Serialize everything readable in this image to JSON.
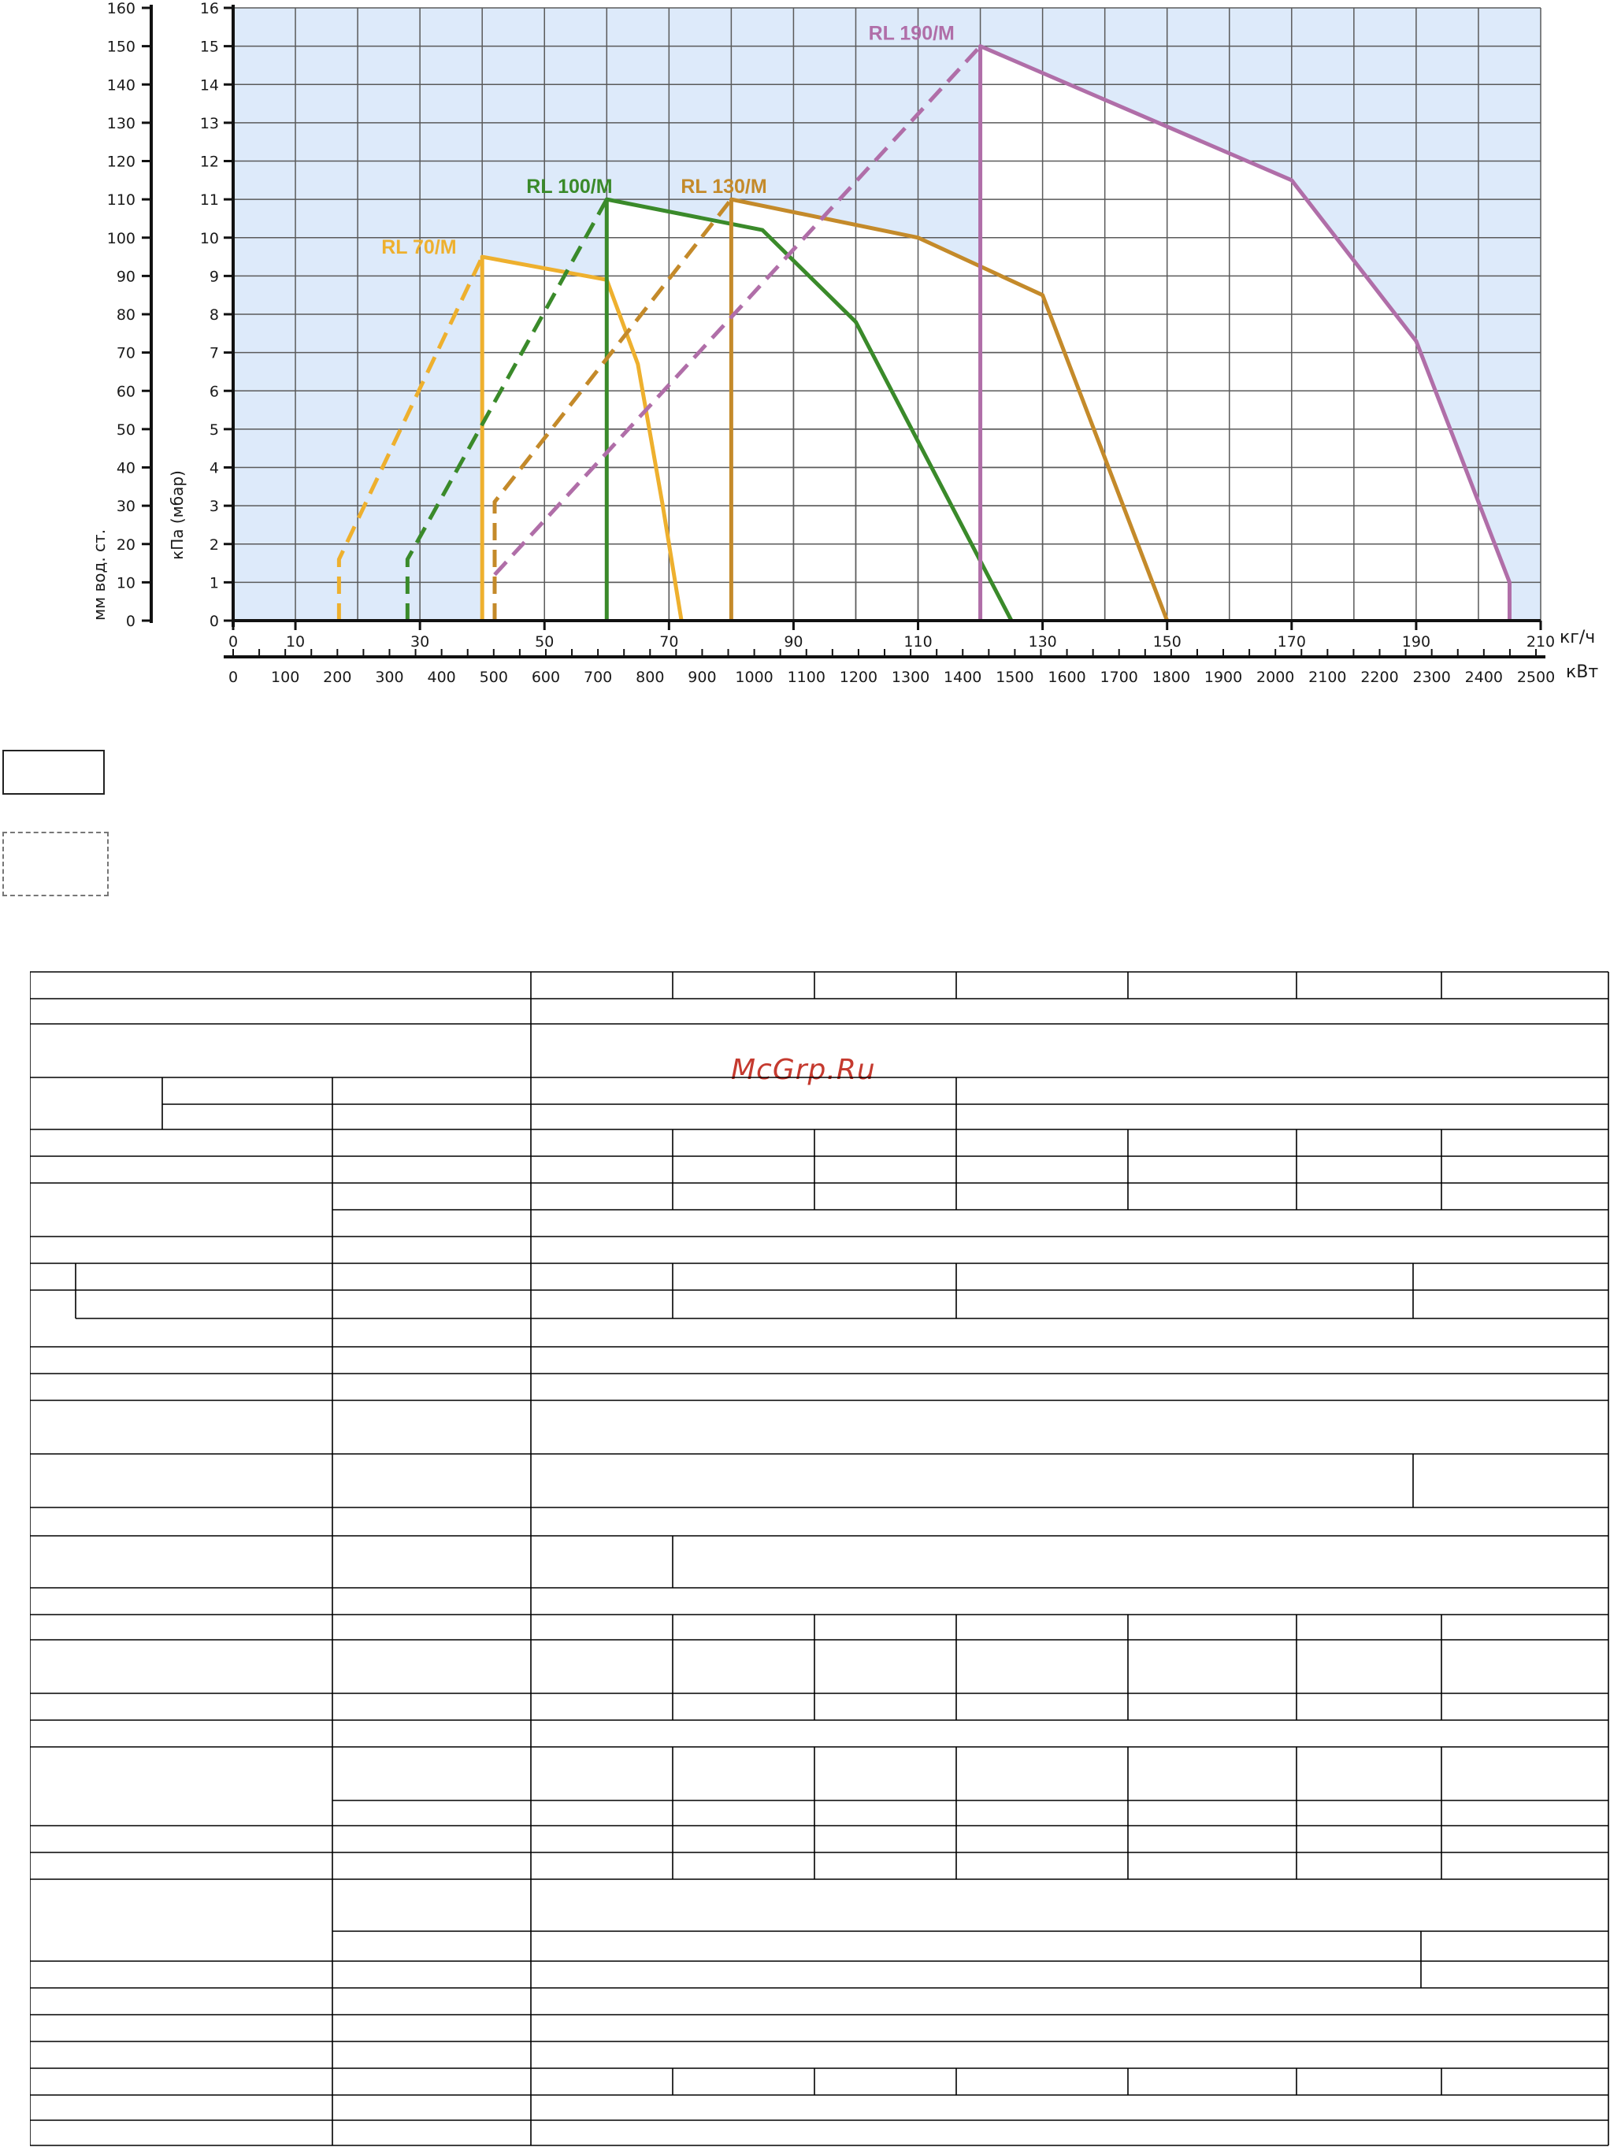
{
  "chart_data": {
    "type": "line",
    "x_axis_primary": {
      "unit": "кг/ч",
      "range": [
        0,
        210
      ],
      "ticks": [
        0,
        10,
        30,
        50,
        70,
        90,
        110,
        130,
        150,
        170,
        190,
        210
      ],
      "tick_labels": [
        "0",
        "10",
        "30",
        "50",
        "70",
        "90",
        "110",
        "130",
        "150",
        "170",
        "190",
        "210"
      ]
    },
    "x_axis_secondary": {
      "unit": "кВт",
      "range": [
        0,
        2500
      ],
      "tick_labels": [
        "0",
        "100",
        "200",
        "300",
        "400",
        "500",
        "600",
        "700",
        "800",
        "900",
        "1000",
        "1100",
        "1200",
        "1300",
        "1400",
        "1500",
        "1600",
        "1700",
        "1800",
        "1900",
        "2000",
        "2100",
        "2200",
        "2300",
        "2400",
        "2500"
      ]
    },
    "y_axis_left": {
      "label": "мм вод. ст.",
      "range": [
        0,
        160
      ],
      "tick_labels": [
        "0",
        "10",
        "20",
        "30",
        "40",
        "50",
        "60",
        "70",
        "80",
        "90",
        "100",
        "110",
        "120",
        "130",
        "140",
        "150",
        "160"
      ]
    },
    "y_axis_right": {
      "label": "кПа (мбар)",
      "range": [
        0,
        16
      ],
      "tick_labels": [
        "0",
        "1",
        "2",
        "3",
        "4",
        "5",
        "6",
        "7",
        "8",
        "9",
        "10",
        "11",
        "12",
        "13",
        "14",
        "15",
        "16"
      ]
    },
    "grid": true,
    "series": [
      {
        "name": "RL 70/M",
        "color": "#eeb02e",
        "dashed": [
          [
            17,
            0
          ],
          [
            17,
            1.6
          ],
          [
            40,
            9.5
          ]
        ],
        "solid": [
          [
            40,
            0
          ],
          [
            40,
            9.5
          ],
          [
            60,
            8.9
          ],
          [
            65,
            6.7
          ],
          [
            69,
            3.0
          ],
          [
            72,
            0
          ]
        ]
      },
      {
        "name": "RL 100/M",
        "color": "#3a8a2a",
        "dashed": [
          [
            28,
            0
          ],
          [
            28,
            1.6
          ],
          [
            60,
            11
          ]
        ],
        "solid": [
          [
            60,
            0
          ],
          [
            60,
            11
          ],
          [
            85,
            10.2
          ],
          [
            100,
            7.8
          ],
          [
            125,
            0
          ]
        ]
      },
      {
        "name": "RL 130/M",
        "color": "#c48a2a",
        "dashed": [
          [
            42,
            0
          ],
          [
            42,
            3.1
          ],
          [
            80,
            11
          ]
        ],
        "solid": [
          [
            80,
            0
          ],
          [
            80,
            11
          ],
          [
            110,
            10
          ],
          [
            130,
            8.5
          ],
          [
            150,
            0
          ]
        ]
      },
      {
        "name": "RL 190/M",
        "color": "#b06ea8",
        "dashed": [
          [
            42,
            1.2
          ],
          [
            120,
            15
          ]
        ],
        "solid": [
          [
            120,
            0
          ],
          [
            120,
            15
          ],
          [
            170,
            11.5
          ],
          [
            190,
            7.3
          ],
          [
            205,
            1.0
          ],
          [
            205,
            0
          ]
        ]
      }
    ]
  },
  "watermark": "McGrp.Ru",
  "colors": {
    "plot_background": "#ddeafa",
    "grid": "#5a5a5a",
    "watermark": "#c53a2f"
  }
}
